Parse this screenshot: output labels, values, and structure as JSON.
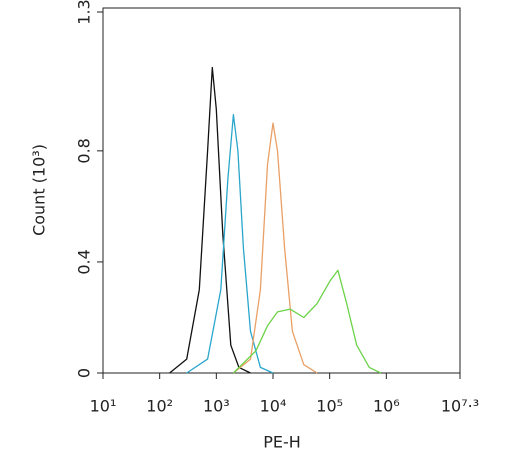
{
  "chart_data": {
    "type": "line",
    "x_label": "PE-H",
    "y_label": "Count (10³)",
    "x_scale": "log",
    "xlim": [
      10,
      19952623
    ],
    "xticks": [
      {
        "value": 10,
        "label": "10¹"
      },
      {
        "value": 100,
        "label": "10²"
      },
      {
        "value": 1000,
        "label": "10³"
      },
      {
        "value": 10000,
        "label": "10⁴"
      },
      {
        "value": 100000,
        "label": "10⁵"
      },
      {
        "value": 1000000,
        "label": "10⁶"
      },
      {
        "value": 19952623,
        "label": "10⁷·³"
      }
    ],
    "ylim": [
      0,
      1.3
    ],
    "yticks": [
      0,
      0.4,
      0.8,
      1.3
    ],
    "series": [
      {
        "color": "#111111",
        "x": [
          150,
          300,
          500,
          700,
          850,
          1000,
          1300,
          1800,
          2500,
          4000
        ],
        "values": [
          0,
          0.05,
          0.3,
          0.8,
          1.1,
          0.95,
          0.5,
          0.1,
          0.02,
          0
        ]
      },
      {
        "color": "#2aa6cc",
        "x": [
          300,
          700,
          1200,
          1600,
          2000,
          2400,
          3000,
          4000,
          6000,
          10000
        ],
        "values": [
          0,
          0.05,
          0.3,
          0.7,
          0.93,
          0.8,
          0.45,
          0.15,
          0.02,
          0
        ]
      },
      {
        "color": "#e9a066",
        "x": [
          2000,
          4000,
          6000,
          8000,
          10000,
          12000,
          16000,
          22000,
          35000,
          60000
        ],
        "values": [
          0,
          0.05,
          0.3,
          0.75,
          0.9,
          0.8,
          0.45,
          0.15,
          0.03,
          0
        ]
      },
      {
        "color": "#6cd24a",
        "x": [
          2000,
          5000,
          8000,
          12000,
          20000,
          35000,
          60000,
          100000,
          140000,
          200000,
          300000,
          500000,
          800000
        ],
        "values": [
          0,
          0.08,
          0.17,
          0.22,
          0.23,
          0.2,
          0.25,
          0.33,
          0.37,
          0.25,
          0.1,
          0.02,
          0
        ]
      }
    ]
  }
}
